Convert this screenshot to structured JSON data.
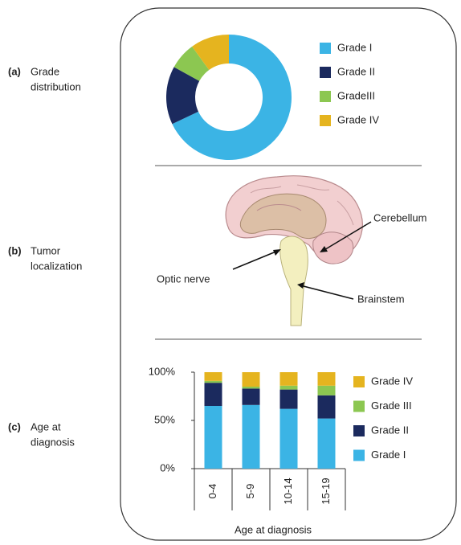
{
  "panels": [
    {
      "letter": "(a)",
      "lines": [
        "Grade",
        "distribution"
      ]
    },
    {
      "letter": "(b)",
      "lines": [
        "Tumor",
        "localization"
      ]
    },
    {
      "letter": "(c)",
      "lines": [
        "Age at",
        "diagnosis"
      ]
    }
  ],
  "diagram": {
    "labels": [
      "Cerebellum",
      "Optic nerve",
      "Brainstem"
    ]
  },
  "chart_data": [
    {
      "type": "pie",
      "categories": [
        "Grade I",
        "Grade II",
        "GradeIII",
        "Grade IV"
      ],
      "values": [
        68,
        15,
        7,
        10
      ],
      "colors": [
        "#3bb4e5",
        "#1b2a5e",
        "#8cc751",
        "#e5b41f"
      ]
    },
    {
      "type": "bar",
      "stacked": true,
      "categories": [
        "0-4",
        "5-9",
        "10-14",
        "15-19"
      ],
      "series": [
        {
          "name": "Grade I",
          "color": "#3bb4e5",
          "values": [
            65,
            66,
            62,
            52
          ]
        },
        {
          "name": "Grade II",
          "color": "#1b2a5e",
          "values": [
            24,
            17,
            20,
            24
          ]
        },
        {
          "name": "Grade III",
          "color": "#8cc751",
          "values": [
            2,
            2,
            4,
            10
          ]
        },
        {
          "name": "Grade IV",
          "color": "#e5b41f",
          "values": [
            9,
            15,
            14,
            14
          ]
        }
      ],
      "ylim": [
        0,
        100
      ],
      "yticks": [
        {
          "value": 0,
          "label": "0%"
        },
        {
          "value": 50,
          "label": "50%"
        },
        {
          "value": 100,
          "label": "100%"
        }
      ],
      "x_label": "Age at diagnosis"
    }
  ]
}
